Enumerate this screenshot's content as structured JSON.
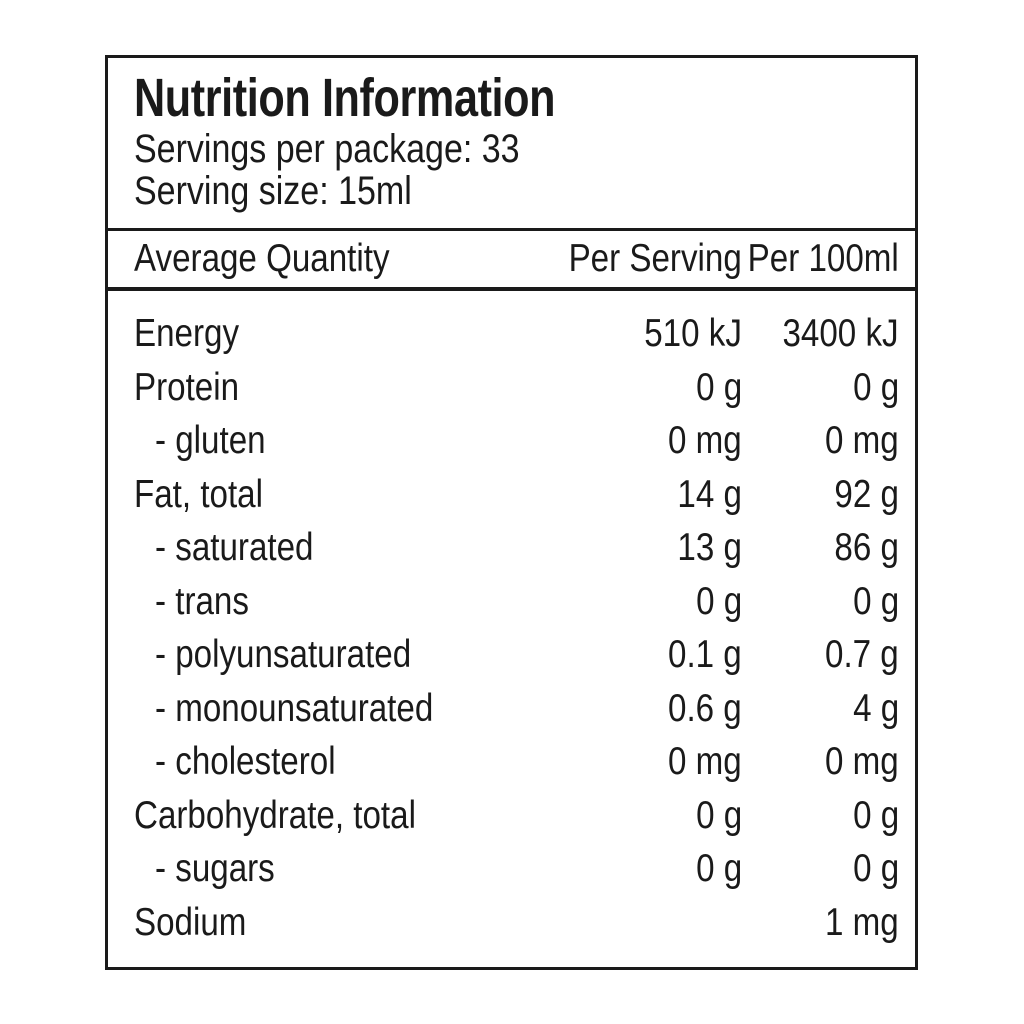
{
  "label": {
    "title": "Nutrition Information",
    "servings_line": "Servings per package: 33",
    "serving_size_line": "Serving size: 15ml"
  },
  "table": {
    "columns": [
      "Average Quantity",
      "Per Serving",
      "Per 100ml"
    ],
    "rows": [
      {
        "name": "Energy",
        "indent": false,
        "per_serving": "510 kJ",
        "per_100ml": "3400 kJ"
      },
      {
        "name": "Protein",
        "indent": false,
        "per_serving": "0 g",
        "per_100ml": "0 g"
      },
      {
        "name": "- gluten",
        "indent": true,
        "per_serving": "0 mg",
        "per_100ml": "0 mg"
      },
      {
        "name": "Fat, total",
        "indent": false,
        "per_serving": "14 g",
        "per_100ml": "92 g"
      },
      {
        "name": "- saturated",
        "indent": true,
        "per_serving": "13 g",
        "per_100ml": "86 g"
      },
      {
        "name": "- trans",
        "indent": true,
        "per_serving": "0 g",
        "per_100ml": "0 g"
      },
      {
        "name": "- polyunsaturated",
        "indent": true,
        "per_serving": "0.1 g",
        "per_100ml": "0.7 g"
      },
      {
        "name": "- monounsaturated",
        "indent": true,
        "per_serving": "0.6 g",
        "per_100ml": "4 g"
      },
      {
        "name": "- cholesterol",
        "indent": true,
        "per_serving": "0 mg",
        "per_100ml": "0 mg"
      },
      {
        "name": "Carbohydrate, total",
        "indent": false,
        "per_serving": "0 g",
        "per_100ml": "0 g"
      },
      {
        "name": "- sugars",
        "indent": true,
        "per_serving": "0 g",
        "per_100ml": "0 g"
      },
      {
        "name": "Sodium",
        "indent": false,
        "per_serving": "",
        "per_100ml": "1 mg"
      }
    ]
  }
}
